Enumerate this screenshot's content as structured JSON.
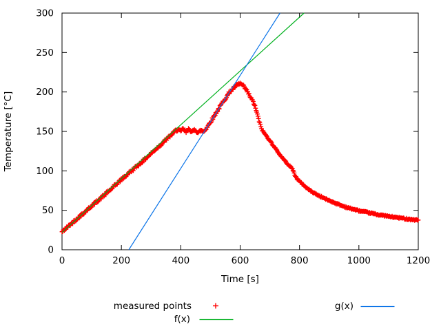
{
  "window": {
    "background": "#ffffff",
    "text_color": "#000000",
    "axis_color": "#000000"
  },
  "chart_data": {
    "type": "scatter",
    "title": "",
    "xlabel": "Time [s]",
    "ylabel": "Temperature [°C]",
    "xlim": [
      0,
      1200
    ],
    "ylim": [
      0,
      300
    ],
    "xticks": [
      0,
      200,
      400,
      600,
      800,
      1000,
      1200
    ],
    "yticks": [
      0,
      50,
      100,
      150,
      200,
      250,
      300
    ],
    "grid": false,
    "legend_position": "below-plot",
    "series": [
      {
        "name": "measured points",
        "type": "points",
        "marker": "plus",
        "color": "#ff0000",
        "sample_interval_s": 2,
        "noise_amplitude_c": {
          "dense": 1.7,
          "cliff": 1.2,
          "tail": 0.9
        },
        "anchors": [
          [
            0,
            22.5
          ],
          [
            40,
            36
          ],
          [
            80,
            49
          ],
          [
            120,
            62
          ],
          [
            160,
            75
          ],
          [
            200,
            89
          ],
          [
            240,
            102
          ],
          [
            280,
            115
          ],
          [
            320,
            129
          ],
          [
            355,
            141
          ],
          [
            385,
            151.5
          ],
          [
            392,
            152.5
          ],
          [
            400,
            149.5
          ],
          [
            408,
            153.5
          ],
          [
            418,
            149
          ],
          [
            428,
            153.5
          ],
          [
            438,
            149
          ],
          [
            448,
            152.5
          ],
          [
            458,
            148.5
          ],
          [
            468,
            151
          ],
          [
            478,
            150
          ],
          [
            488,
            155
          ],
          [
            505,
            165
          ],
          [
            525,
            177
          ],
          [
            545,
            189
          ],
          [
            565,
            200
          ],
          [
            580,
            205.5
          ],
          [
            592,
            209.5
          ],
          [
            600,
            210.5
          ],
          [
            608,
            208.5
          ],
          [
            618,
            204
          ],
          [
            628,
            198
          ],
          [
            636,
            192.5
          ],
          [
            643,
            188
          ],
          [
            649,
            183
          ],
          [
            654,
            177
          ],
          [
            659,
            170
          ],
          [
            664,
            163
          ],
          [
            669,
            157
          ],
          [
            673,
            152.5
          ],
          [
            680,
            148.5
          ],
          [
            695,
            141
          ],
          [
            710,
            133
          ],
          [
            725,
            125
          ],
          [
            740,
            117.5
          ],
          [
            755,
            111
          ],
          [
            768,
            105.5
          ],
          [
            777,
            102.5
          ],
          [
            780,
            99
          ],
          [
            784,
            94.5
          ],
          [
            792,
            90
          ],
          [
            802,
            86
          ],
          [
            812,
            82.5
          ],
          [
            827,
            77.5
          ],
          [
            842,
            73.5
          ],
          [
            858,
            70
          ],
          [
            874,
            67
          ],
          [
            890,
            64
          ],
          [
            906,
            61.5
          ],
          [
            925,
            58.5
          ],
          [
            945,
            55.5
          ],
          [
            965,
            53
          ],
          [
            985,
            51
          ],
          [
            1005,
            49
          ],
          [
            1025,
            47.5
          ],
          [
            1045,
            46
          ],
          [
            1065,
            44.5
          ],
          [
            1085,
            43.2
          ],
          [
            1105,
            42
          ],
          [
            1125,
            41
          ],
          [
            1145,
            40
          ],
          [
            1165,
            39
          ],
          [
            1185,
            38
          ],
          [
            1200,
            37.5
          ]
        ]
      },
      {
        "name": "f(x)",
        "type": "line",
        "color": "#00b01e",
        "slope": 0.341,
        "intercept": 22
      },
      {
        "name": "g(x)",
        "type": "line",
        "color": "#0b74e8",
        "slope": 0.589,
        "intercept": -132.5
      }
    ]
  }
}
